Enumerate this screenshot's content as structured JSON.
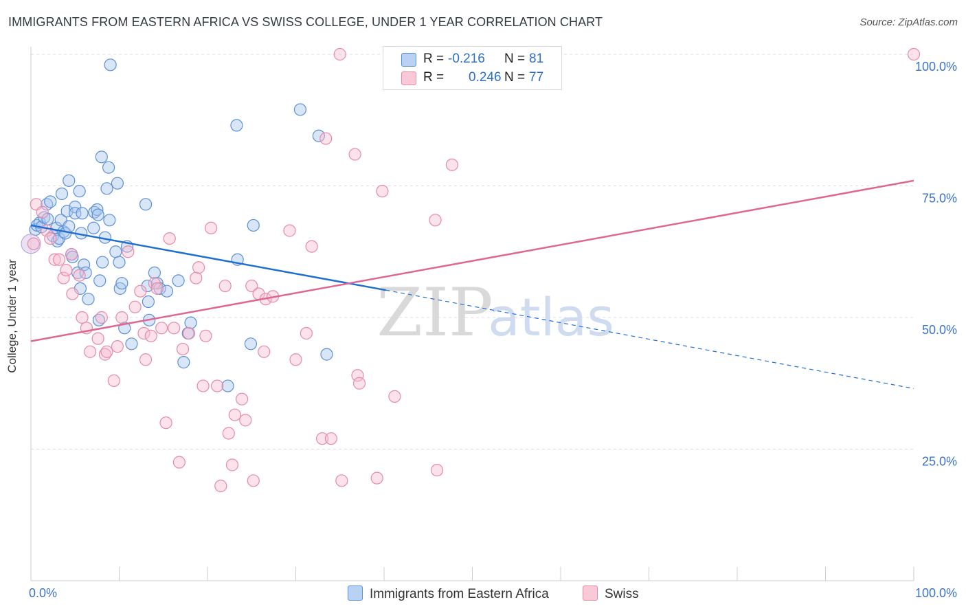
{
  "title": "IMMIGRANTS FROM EASTERN AFRICA VS SWISS COLLEGE, UNDER 1 YEAR CORRELATION CHART",
  "source": "Source: ZipAtlas.com",
  "watermark": {
    "zip": "ZIP",
    "atlas": "atlas"
  },
  "legend": {
    "series1": {
      "r_label": "R =",
      "r_value": "-0.216",
      "n_label": "N =",
      "n_value": "81"
    },
    "series2": {
      "r_label": "R =",
      "r_value": "0.246",
      "n_label": "N =",
      "n_value": "77"
    }
  },
  "colors": {
    "blue_fill": "#aac8f0",
    "blue_stroke": "#5b8fd6",
    "blue_line": "#1f6fd1",
    "pink_fill": "#f8bfd0",
    "pink_stroke": "#e58aa8",
    "pink_line": "#e06692",
    "tick_label": "#3a72c8",
    "grid": "#dddddd"
  },
  "chart_data": {
    "type": "scatter",
    "title": "IMMIGRANTS FROM EASTERN AFRICA VS SWISS COLLEGE, UNDER 1 YEAR CORRELATION CHART",
    "xlabel": "",
    "ylabel": "College, Under 1 year",
    "xlim": [
      0,
      100
    ],
    "ylim": [
      0,
      100
    ],
    "x_tick_labels": [
      "0.0%",
      "100.0%"
    ],
    "y_tick_labels": [
      {
        "value": 100,
        "label": "100.0%"
      },
      {
        "value": 75,
        "label": "75.0%"
      },
      {
        "value": 50,
        "label": "50.0%"
      },
      {
        "value": 25,
        "label": "25.0%"
      }
    ],
    "grid": true,
    "legend_position": "bottom",
    "series": [
      {
        "name": "Immigrants from Eastern Africa",
        "color": "#5b8fd6",
        "r": -0.216,
        "n": 81,
        "trend": {
          "x0": 0,
          "y0": 67.5,
          "x1": 40.2,
          "y1": 55.2,
          "dashed_to_x": 100,
          "dashed_to_y": 36.5
        },
        "points": [
          [
            0.5,
            66.7
          ],
          [
            0.7,
            67.5
          ],
          [
            1.0,
            68.0
          ],
          [
            1.2,
            67.2
          ],
          [
            1.5,
            69.0
          ],
          [
            1.8,
            71.5
          ],
          [
            1.9,
            68.7
          ],
          [
            2.2,
            72.0
          ],
          [
            2.5,
            65.5
          ],
          [
            2.9,
            67.0
          ],
          [
            3.0,
            64.5
          ],
          [
            3.2,
            65.0
          ],
          [
            3.4,
            68.5
          ],
          [
            3.5,
            73.5
          ],
          [
            3.7,
            66.3
          ],
          [
            3.9,
            66.0
          ],
          [
            4.1,
            70.2
          ],
          [
            4.3,
            67.3
          ],
          [
            4.3,
            76.0
          ],
          [
            4.6,
            62.0
          ],
          [
            4.7,
            61.5
          ],
          [
            5.0,
            71.0
          ],
          [
            5.0,
            69.8
          ],
          [
            5.3,
            58.5
          ],
          [
            5.5,
            74.0
          ],
          [
            5.6,
            55.5
          ],
          [
            5.7,
            66.0
          ],
          [
            5.8,
            69.8
          ],
          [
            6.0,
            60.0
          ],
          [
            6.2,
            58.5
          ],
          [
            6.5,
            53.5
          ],
          [
            7.1,
            67.0
          ],
          [
            7.2,
            70.0
          ],
          [
            7.5,
            70.5
          ],
          [
            7.6,
            69.5
          ],
          [
            7.7,
            49.5
          ],
          [
            7.8,
            57.0
          ],
          [
            8.0,
            80.5
          ],
          [
            8.1,
            60.5
          ],
          [
            8.4,
            65.2
          ],
          [
            8.6,
            74.5
          ],
          [
            8.8,
            78.5
          ],
          [
            8.9,
            68.5
          ],
          [
            9.0,
            98.0
          ],
          [
            9.6,
            62.5
          ],
          [
            9.8,
            75.5
          ],
          [
            10.0,
            60.5
          ],
          [
            10.1,
            55.5
          ],
          [
            10.3,
            56.5
          ],
          [
            10.6,
            48.0
          ],
          [
            10.9,
            63.5
          ],
          [
            11.4,
            45.0
          ],
          [
            13.0,
            71.5
          ],
          [
            13.2,
            56.0
          ],
          [
            13.3,
            53.0
          ],
          [
            13.4,
            49.5
          ],
          [
            14.0,
            58.5
          ],
          [
            14.3,
            56.5
          ],
          [
            14.6,
            55.5
          ],
          [
            15.4,
            55.0
          ],
          [
            16.7,
            57.0
          ],
          [
            17.3,
            41.5
          ],
          [
            17.8,
            47.0
          ],
          [
            18.1,
            49.0
          ],
          [
            22.3,
            37.0
          ],
          [
            23.3,
            86.5
          ],
          [
            23.4,
            61.0
          ],
          [
            24.9,
            45.0
          ],
          [
            25.2,
            67.5
          ],
          [
            30.5,
            89.5
          ],
          [
            32.6,
            84.5
          ],
          [
            33.5,
            43.0
          ]
        ]
      },
      {
        "name": "Swiss",
        "color": "#e58aa8",
        "r": 0.246,
        "n": 77,
        "trend": {
          "x0": 0,
          "y0": 45.5,
          "x1": 100,
          "y1": 76.0
        },
        "points": [
          [
            0.3,
            64.0
          ],
          [
            0.6,
            71.5
          ],
          [
            1.3,
            70.0
          ],
          [
            1.8,
            66.5
          ],
          [
            2.2,
            65.0
          ],
          [
            2.7,
            61.0
          ],
          [
            3.2,
            61.0
          ],
          [
            3.7,
            57.5
          ],
          [
            4.0,
            59.0
          ],
          [
            4.6,
            62.0
          ],
          [
            4.7,
            54.5
          ],
          [
            5.5,
            58.0
          ],
          [
            5.8,
            50.0
          ],
          [
            6.3,
            48.0
          ],
          [
            6.7,
            43.5
          ],
          [
            7.6,
            46.0
          ],
          [
            8.0,
            50.0
          ],
          [
            8.4,
            43.0
          ],
          [
            8.6,
            43.5
          ],
          [
            9.4,
            38.0
          ],
          [
            9.8,
            44.5
          ],
          [
            10.3,
            50.0
          ],
          [
            11.0,
            62.5
          ],
          [
            11.8,
            52.0
          ],
          [
            12.4,
            55.0
          ],
          [
            12.8,
            47.0
          ],
          [
            13.0,
            42.0
          ],
          [
            13.6,
            46.5
          ],
          [
            14.0,
            56.5
          ],
          [
            14.3,
            55.5
          ],
          [
            14.8,
            48.0
          ],
          [
            15.3,
            30.0
          ],
          [
            15.7,
            65.0
          ],
          [
            16.2,
            48.0
          ],
          [
            16.8,
            22.5
          ],
          [
            17.2,
            44.0
          ],
          [
            17.9,
            47.0
          ],
          [
            18.7,
            57.5
          ],
          [
            19.0,
            59.5
          ],
          [
            19.5,
            37.0
          ],
          [
            19.8,
            46.5
          ],
          [
            20.4,
            67.0
          ],
          [
            21.1,
            37.0
          ],
          [
            21.5,
            18.0
          ],
          [
            22.0,
            56.0
          ],
          [
            22.4,
            28.0
          ],
          [
            22.8,
            22.0
          ],
          [
            23.1,
            31.5
          ],
          [
            23.9,
            34.5
          ],
          [
            24.3,
            30.5
          ],
          [
            25.0,
            56.0
          ],
          [
            25.2,
            19.0
          ],
          [
            25.8,
            54.5
          ],
          [
            26.4,
            43.5
          ],
          [
            26.6,
            53.5
          ],
          [
            27.4,
            54.0
          ],
          [
            29.3,
            66.5
          ],
          [
            30.0,
            42.0
          ],
          [
            31.2,
            47.0
          ],
          [
            31.8,
            63.5
          ],
          [
            33.0,
            27.0
          ],
          [
            33.4,
            84.0
          ],
          [
            34.0,
            27.0
          ],
          [
            35.0,
            100.0
          ],
          [
            35.2,
            19.0
          ],
          [
            36.7,
            81.0
          ],
          [
            37.0,
            39.0
          ],
          [
            37.2,
            37.5
          ],
          [
            39.2,
            19.5
          ],
          [
            39.8,
            74.0
          ],
          [
            41.2,
            35.0
          ],
          [
            45.8,
            68.5
          ],
          [
            46.0,
            21.0
          ],
          [
            47.7,
            79.0
          ],
          [
            100.0,
            100.0
          ]
        ]
      }
    ]
  }
}
